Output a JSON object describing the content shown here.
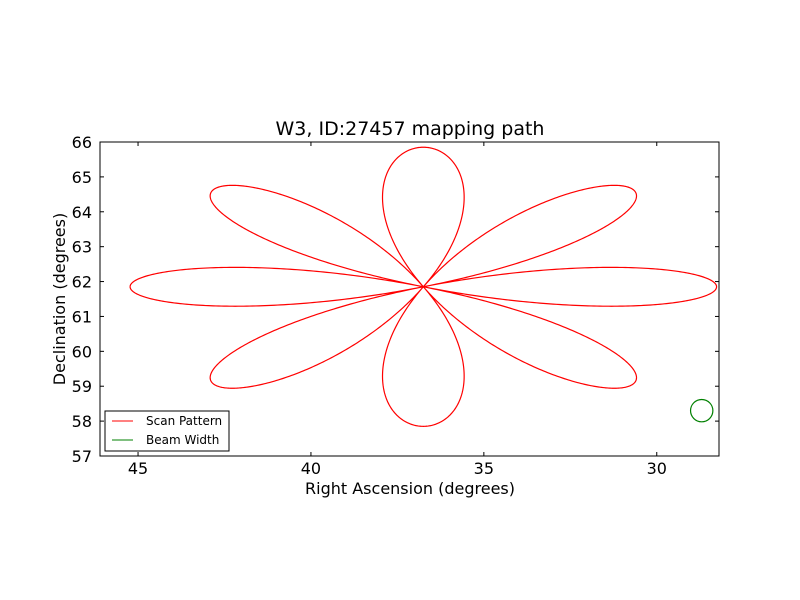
{
  "chart_data": {
    "type": "line",
    "title": "W3, ID:27457 mapping path",
    "xlabel": "Right Ascension (degrees)",
    "ylabel": "Declination (degrees)",
    "xlim": [
      46.1,
      28.2
    ],
    "ylim": [
      57,
      66
    ],
    "xticks": [
      45,
      40,
      35,
      30
    ],
    "yticks": [
      57,
      58,
      59,
      60,
      61,
      62,
      63,
      64,
      65,
      66
    ],
    "grid": false,
    "legend_position": "lower-left",
    "center": {
      "ra": 36.75,
      "dec": 61.85
    },
    "series": [
      {
        "name": "Scan Pattern",
        "color": "#ff0000",
        "petal_count": 8,
        "petal_radius_dec": 4.0,
        "ra_scale": 2.12
      },
      {
        "name": "Beam Width",
        "color": "#008000",
        "marker": {
          "ra": 28.7,
          "dec": 58.3,
          "radius_dec": 0.32
        }
      }
    ]
  }
}
